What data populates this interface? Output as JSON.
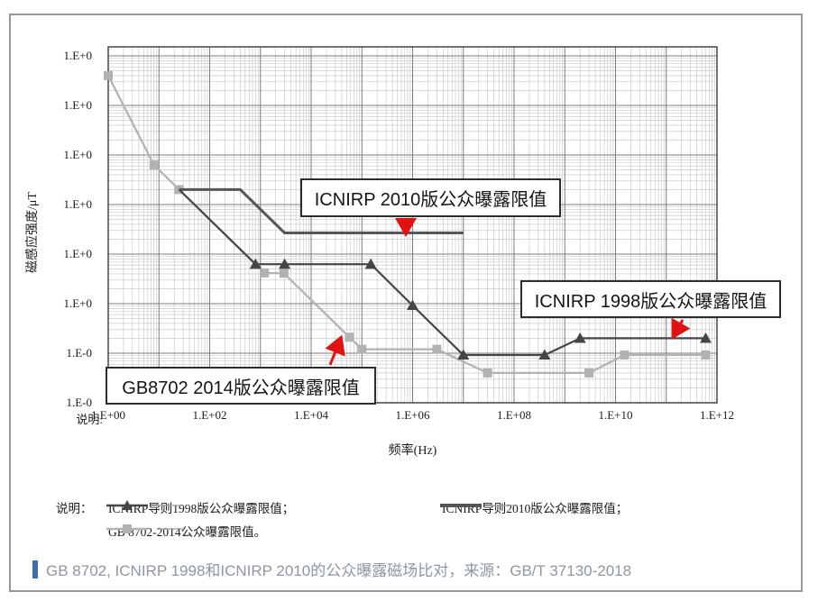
{
  "figure": {
    "y_axis_title": "磁感应强度/μT",
    "x_axis_title": "频率(Hz)",
    "axis_note": "说明:",
    "legend": {
      "heading": "说明：",
      "items": [
        {
          "label": "ICNIRP导则1998版公众曝露限值；"
        },
        {
          "label": "ICNIRP导则2010版公众曝露限值；"
        },
        {
          "label": "GB 8702-2014公众曝露限值。"
        }
      ]
    },
    "annotations": [
      {
        "id": "ann-2010",
        "text": "ICNIRP 2010版公众曝露限值"
      },
      {
        "id": "ann-1998",
        "text": "ICNIRP 1998版公众曝露限值"
      },
      {
        "id": "ann-gb",
        "text": "GB8702 2014版公众曝露限值"
      }
    ],
    "caption": {
      "accent_color": "#3c6db3",
      "text": "GB 8702, ICNIRP 1998和ICNIRP 2010的公众曝露磁场比对，来源：GB/T 37130-2018"
    }
  },
  "chart_data": {
    "type": "line",
    "title": "",
    "xlabel": "频率(Hz)",
    "ylabel": "磁感应强度/μT",
    "x_scale": "log",
    "y_scale": "log",
    "x_range": [
      1,
      1000000000000.0
    ],
    "y_range": [
      0.01,
      100000
    ],
    "grid": true,
    "legend_position": "bottom",
    "x_tick_labels": [
      "1.E+00",
      "1.E+02",
      "1.E+04",
      "1.E+06",
      "1.E+08",
      "1.E+10",
      "1.E+12"
    ],
    "y_tick_labels": [
      "1.E+0",
      "1.E+0",
      "1.E+0",
      "1.E+0",
      "1.E+0",
      "1.E+0",
      "1.E-0",
      "1.E-0"
    ],
    "arrow_color": "#e01212",
    "series": [
      {
        "name": "ICNIRP导则1998版公众曝露限值",
        "marker": "triangle",
        "color": "#454545",
        "points": [
          [
            25,
            200
          ],
          [
            800,
            6.25
          ],
          [
            3000,
            6.25
          ],
          [
            150000,
            6.25
          ],
          [
            1000000,
            0.92
          ],
          [
            10000000,
            0.092
          ],
          [
            400000000,
            0.092
          ],
          [
            2000000000,
            0.2
          ],
          [
            600000000000.0,
            0.2
          ]
        ],
        "marker_points": [
          [
            800,
            6.25
          ],
          [
            3000,
            6.25
          ],
          [
            150000,
            6.25
          ],
          [
            1000000,
            0.92
          ],
          [
            10000000,
            0.092
          ],
          [
            400000000,
            0.092
          ],
          [
            2000000000,
            0.2
          ],
          [
            600000000000.0,
            0.2
          ]
        ]
      },
      {
        "name": "ICNIRP导则2010版公众曝露限值",
        "marker": "none",
        "color": "#565656",
        "points": [
          [
            25,
            200
          ],
          [
            400,
            200
          ],
          [
            3000,
            26.7
          ],
          [
            10000000,
            26.7
          ]
        ],
        "marker_points": []
      },
      {
        "name": "GB 8702-2014公众曝露限值",
        "marker": "square",
        "color": "#b2b2b2",
        "points": [
          [
            1,
            40000
          ],
          [
            8,
            625
          ],
          [
            25,
            200
          ],
          [
            1200,
            4.17
          ],
          [
            2900,
            4.1
          ],
          [
            57000,
            0.21
          ],
          [
            100000,
            0.12
          ],
          [
            3000000,
            0.12
          ],
          [
            30000000,
            0.04
          ],
          [
            3000000000,
            0.04
          ],
          [
            15000000000,
            0.092
          ],
          [
            600000000000.0,
            0.092
          ]
        ],
        "marker_points": [
          [
            1,
            40000
          ],
          [
            8,
            625
          ],
          [
            25,
            200
          ],
          [
            1200,
            4.17
          ],
          [
            2900,
            4.1
          ],
          [
            57000,
            0.21
          ],
          [
            100000,
            0.12
          ],
          [
            3000000,
            0.12
          ],
          [
            30000000,
            0.04
          ],
          [
            3000000000,
            0.04
          ],
          [
            15000000000,
            0.092
          ],
          [
            600000000000.0,
            0.092
          ]
        ]
      }
    ]
  }
}
